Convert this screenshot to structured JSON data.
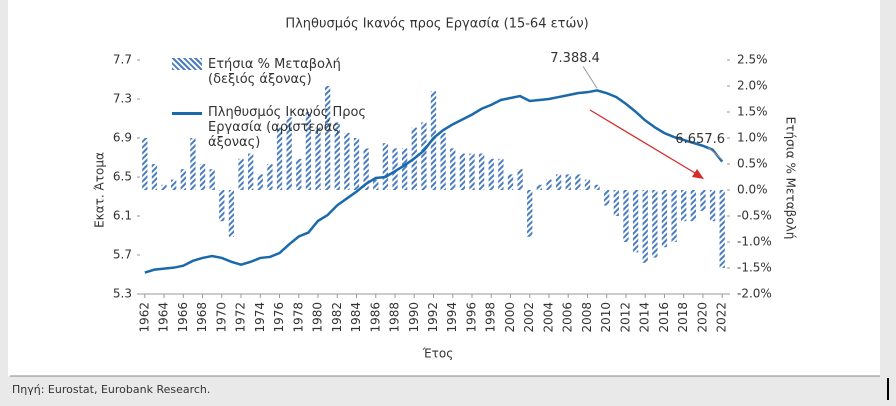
{
  "chart_data": {
    "type": "bar-line",
    "title": "Πληθυσμός Ικανός προς Εργασία (15-64 ετών)",
    "xlabel": "Έτος",
    "ylabel": "Εκατ. Άτομα",
    "y2label": "Ετήσια % Μεταβολή",
    "source": "Πηγή: Eurostat, Eurobank Research.",
    "x": [
      1962,
      1963,
      1964,
      1965,
      1966,
      1967,
      1968,
      1969,
      1970,
      1971,
      1972,
      1973,
      1974,
      1975,
      1976,
      1977,
      1978,
      1979,
      1980,
      1981,
      1982,
      1983,
      1984,
      1985,
      1986,
      1987,
      1988,
      1989,
      1990,
      1991,
      1992,
      1993,
      1994,
      1995,
      1996,
      1997,
      1998,
      1999,
      2000,
      2001,
      2002,
      2003,
      2004,
      2005,
      2006,
      2007,
      2008,
      2009,
      2010,
      2011,
      2012,
      2013,
      2014,
      2015,
      2016,
      2017,
      2018,
      2019,
      2020,
      2021,
      2022
    ],
    "xlim": [
      1961.5,
      2022.5
    ],
    "xticks": [
      1962,
      1964,
      1966,
      1968,
      1970,
      1972,
      1974,
      1976,
      1978,
      1980,
      1982,
      1984,
      1986,
      1988,
      1990,
      1992,
      1994,
      1996,
      1998,
      2000,
      2002,
      2004,
      2006,
      2008,
      2010,
      2012,
      2014,
      2016,
      2018,
      2020,
      2022
    ],
    "ylim": [
      5.3,
      7.7
    ],
    "yticks": [
      5.3,
      5.7,
      6.1,
      6.5,
      6.9,
      7.3,
      7.7
    ],
    "y2lim": [
      -2.0,
      2.5
    ],
    "y2ticks": [
      {
        "value": -2.0,
        "label": "-2.0%"
      },
      {
        "value": -1.5,
        "label": "-1.5%"
      },
      {
        "value": -1.0,
        "label": "-1.0%"
      },
      {
        "value": -0.5,
        "label": "-0.5%"
      },
      {
        "value": 0.0,
        "label": "0.0%"
      },
      {
        "value": 0.5,
        "label": "0.5%"
      },
      {
        "value": 1.0,
        "label": "1.0%"
      },
      {
        "value": 1.5,
        "label": "1.5%"
      },
      {
        "value": 2.0,
        "label": "2.0%"
      },
      {
        "value": 2.5,
        "label": "2.5%"
      }
    ],
    "series": [
      {
        "name": "Ετήσια % Μεταβολή (δεξιός άξονας)",
        "type": "bar",
        "axis": "y2",
        "color": "#4a7cc0",
        "values": [
          1.0,
          0.5,
          0.1,
          0.2,
          0.4,
          1.0,
          0.5,
          0.4,
          -0.6,
          -0.9,
          0.6,
          0.7,
          0.3,
          0.5,
          1.2,
          1.4,
          0.6,
          1.5,
          1.2,
          2.0,
          1.3,
          1.1,
          1.0,
          0.8,
          0.2,
          0.9,
          0.8,
          0.8,
          1.2,
          1.3,
          1.9,
          1.1,
          0.8,
          0.7,
          0.7,
          0.7,
          0.6,
          0.6,
          0.3,
          0.4,
          -0.9,
          0.1,
          0.2,
          0.3,
          0.3,
          0.3,
          0.2,
          0.1,
          -0.3,
          -0.5,
          -1.0,
          -1.2,
          -1.4,
          -1.3,
          -1.1,
          -1.0,
          -0.6,
          -0.6,
          -0.4,
          -0.6,
          -1.5
        ]
      },
      {
        "name": "Πληθυσμός Ικανός Προς Εργασία (αριστεράς άξονας)",
        "type": "line",
        "color": "#1a6aab",
        "values": [
          5.52,
          5.55,
          5.56,
          5.57,
          5.59,
          5.64,
          5.67,
          5.69,
          5.67,
          5.63,
          5.6,
          5.63,
          5.67,
          5.68,
          5.72,
          5.81,
          5.89,
          5.93,
          6.05,
          6.11,
          6.21,
          6.28,
          6.35,
          6.43,
          6.49,
          6.5,
          6.56,
          6.62,
          6.69,
          6.77,
          6.9,
          6.98,
          7.04,
          7.09,
          7.14,
          7.2,
          7.24,
          7.29,
          7.31,
          7.33,
          7.28,
          7.29,
          7.3,
          7.32,
          7.34,
          7.36,
          7.37,
          7.3884,
          7.36,
          7.32,
          7.25,
          7.17,
          7.08,
          7.01,
          6.95,
          6.91,
          6.88,
          6.85,
          6.82,
          6.78,
          6.6576
        ]
      }
    ],
    "annotations": [
      {
        "text": "7.388.4",
        "x": 2009,
        "y": 7.3884
      },
      {
        "text": "6.657.6",
        "x": 2022,
        "y": 6.6576
      }
    ]
  }
}
